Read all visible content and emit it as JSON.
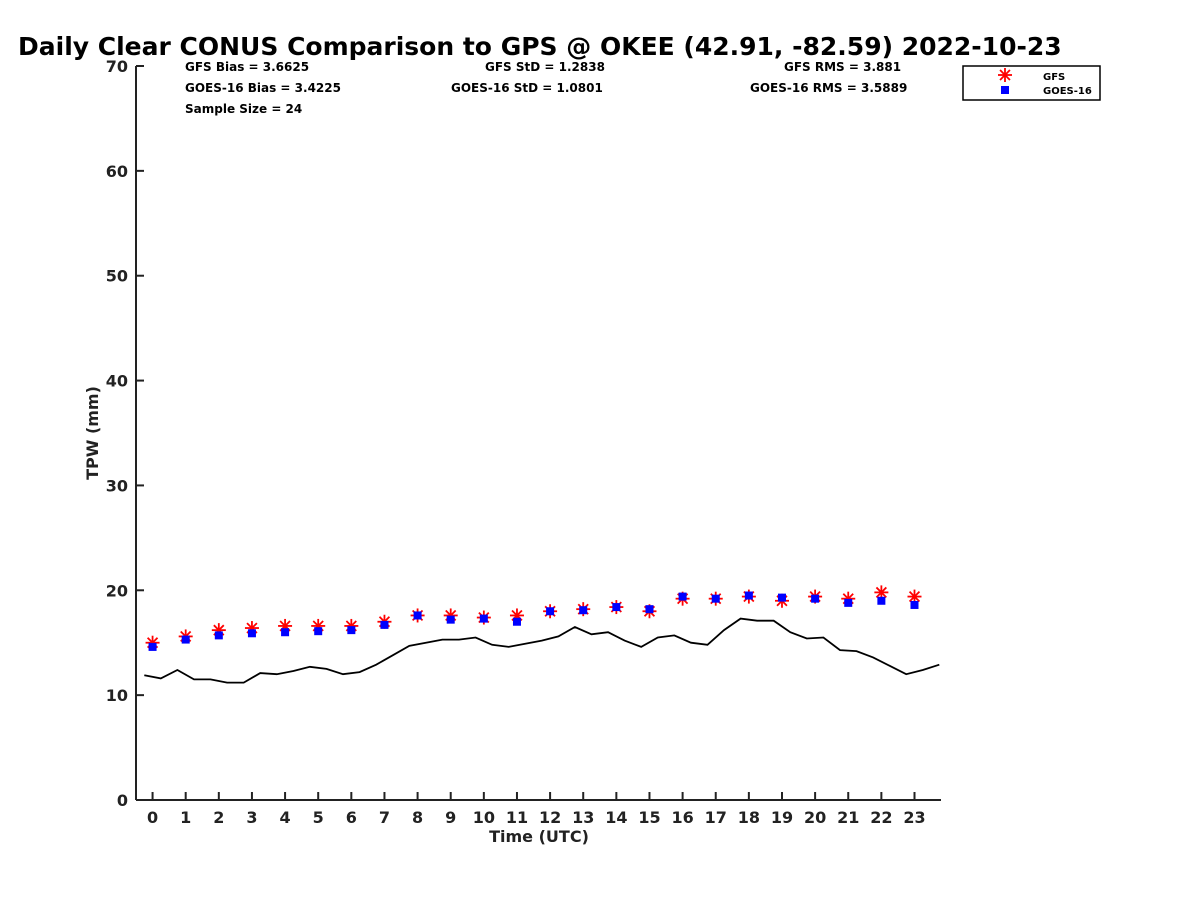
{
  "chart_data": {
    "type": "scatter",
    "title": "Daily Clear CONUS Comparison to GPS @ OKEE (42.91, -82.59) 2022-10-23",
    "xlabel": "Time (UTC)",
    "ylabel": "TPW (mm)",
    "xlim": [
      -0.5,
      23.8
    ],
    "ylim": [
      0,
      70
    ],
    "x_ticks": [
      0,
      1,
      2,
      3,
      4,
      5,
      6,
      7,
      8,
      9,
      10,
      11,
      12,
      13,
      14,
      15,
      16,
      17,
      18,
      19,
      20,
      21,
      22,
      23
    ],
    "y_ticks": [
      0,
      10,
      20,
      30,
      40,
      50,
      60,
      70
    ],
    "legend_position": "top-right",
    "stats": {
      "gfs_bias": "GFS Bias = 3.6625",
      "goes_bias": "GOES-16 Bias = 3.4225",
      "sample_size": "Sample Size = 24",
      "gfs_std": "GFS StD = 1.2838",
      "goes_std": "GOES-16 StD = 1.0801",
      "gfs_rms": "GFS RMS = 3.881",
      "goes_rms": "GOES-16 RMS = 3.5889"
    },
    "series": [
      {
        "name": "GFS",
        "marker": "asterisk",
        "color": "#ff0000",
        "x": [
          0,
          1,
          2,
          3,
          4,
          5,
          6,
          7,
          8,
          9,
          10,
          11,
          12,
          13,
          14,
          15,
          16,
          17,
          18,
          19,
          20,
          21,
          22,
          23
        ],
        "y": [
          15.0,
          15.6,
          16.2,
          16.4,
          16.6,
          16.6,
          16.6,
          17.0,
          17.6,
          17.6,
          17.4,
          17.6,
          18.0,
          18.2,
          18.4,
          18.0,
          19.2,
          19.2,
          19.4,
          19.0,
          19.4,
          19.2,
          19.8,
          19.4
        ]
      },
      {
        "name": "GOES-16",
        "marker": "square",
        "color": "#0000ff",
        "x": [
          0,
          1,
          2,
          3,
          4,
          5,
          6,
          7,
          8,
          9,
          10,
          11,
          12,
          13,
          14,
          15,
          16,
          17,
          18,
          19,
          20,
          21,
          22,
          23
        ],
        "y": [
          14.6,
          15.3,
          15.7,
          15.9,
          16.0,
          16.1,
          16.2,
          16.7,
          17.6,
          17.2,
          17.3,
          17.0,
          18.0,
          18.1,
          18.4,
          18.2,
          19.4,
          19.2,
          19.5,
          19.3,
          19.2,
          18.8,
          19.0,
          18.6
        ]
      },
      {
        "marker": "line",
        "color": "#000000",
        "x": [
          -0.25,
          0.25,
          0.75,
          1.25,
          1.75,
          2.25,
          2.75,
          3.25,
          3.75,
          4.25,
          4.75,
          5.25,
          5.75,
          6.25,
          6.75,
          7.25,
          7.75,
          8.25,
          8.75,
          9.25,
          9.75,
          10.25,
          10.75,
          11.25,
          11.75,
          12.25,
          12.75,
          13.25,
          13.75,
          14.25,
          14.75,
          15.25,
          15.75,
          16.25,
          16.75,
          17.25,
          17.75,
          18.25,
          18.75,
          19.25,
          19.75,
          20.25,
          20.75,
          21.25,
          21.75,
          22.25,
          22.75,
          23.25,
          23.75
        ],
        "y": [
          11.9,
          11.6,
          12.4,
          11.5,
          11.5,
          11.2,
          11.2,
          12.1,
          12.0,
          12.3,
          12.7,
          12.5,
          12.0,
          12.2,
          12.9,
          13.8,
          14.7,
          15.0,
          15.3,
          15.3,
          15.5,
          14.8,
          14.6,
          14.9,
          15.2,
          15.6,
          16.5,
          15.8,
          16.0,
          15.2,
          14.6,
          15.5,
          15.7,
          15.0,
          14.8,
          16.2,
          17.3,
          17.1,
          17.1,
          16.0,
          15.4,
          15.5,
          14.3,
          14.2,
          13.6,
          12.8,
          12.0,
          12.4,
          12.9
        ]
      }
    ]
  }
}
